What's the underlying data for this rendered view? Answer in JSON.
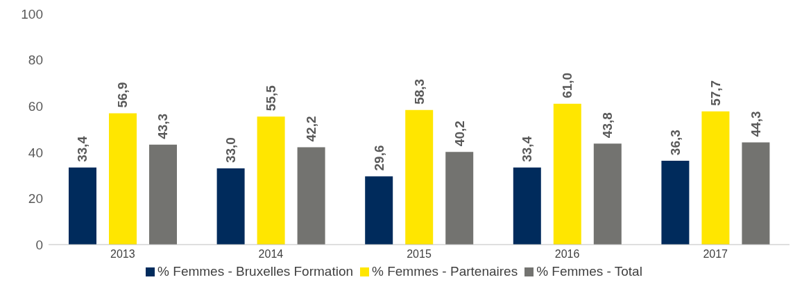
{
  "chart_data": {
    "type": "bar",
    "categories": [
      "2013",
      "2014",
      "2015",
      "2016",
      "2017"
    ],
    "series": [
      {
        "name": "% Femmes - Bruxelles Formation",
        "color": "#002b5c",
        "values": [
          33.4,
          33.0,
          29.6,
          33.4,
          36.3
        ],
        "value_labels": [
          "33,4",
          "33,0",
          "29,6",
          "33,4",
          "36,3"
        ]
      },
      {
        "name": "% Femmes - Partenaires",
        "color": "#ffe600",
        "values": [
          56.9,
          55.5,
          58.3,
          61.0,
          57.7
        ],
        "value_labels": [
          "56,9",
          "55,5",
          "58,3",
          "61,0",
          "57,7"
        ]
      },
      {
        "name": "% Femmes - Total",
        "color": "#737370",
        "values": [
          43.3,
          42.2,
          40.2,
          43.8,
          44.3
        ],
        "value_labels": [
          "43,3",
          "42,2",
          "40,2",
          "43,8",
          "44,3"
        ]
      }
    ],
    "ylim": [
      0,
      100
    ],
    "yticks": [
      0,
      20,
      40,
      60,
      80,
      100
    ],
    "grid": false,
    "legend": "bottom"
  }
}
